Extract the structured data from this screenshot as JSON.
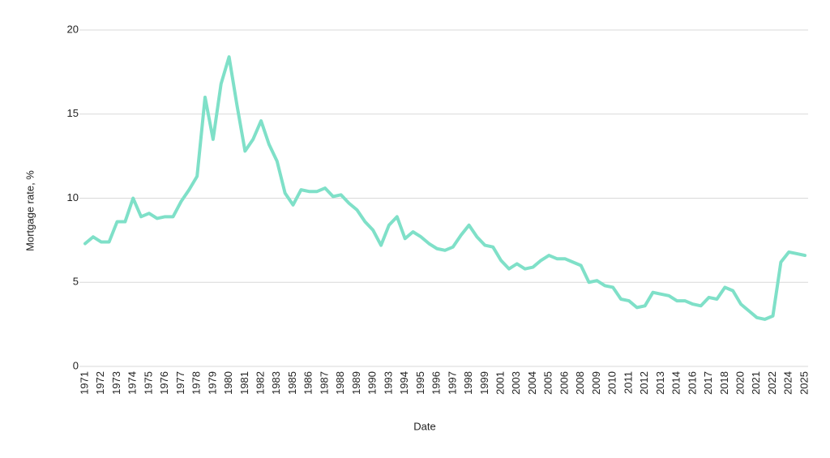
{
  "chart_data": {
    "type": "line",
    "x_label": "Date",
    "y_label": "Mortgage rate, %",
    "categories": [
      "1971",
      null,
      "1972",
      null,
      "1973",
      null,
      "1974",
      null,
      "1975",
      null,
      "1976",
      null,
      "1977",
      null,
      "1978",
      null,
      "1979",
      null,
      "1980",
      null,
      "1981",
      null,
      "1982",
      null,
      "1983",
      null,
      "1985",
      null,
      "1986",
      null,
      "1987",
      null,
      "1988",
      null,
      "1989",
      null,
      "1990",
      null,
      "1993",
      null,
      "1994",
      null,
      "1995",
      null,
      "1996",
      null,
      "1997",
      null,
      "1998",
      null,
      "1999",
      null,
      "2001",
      null,
      "2003",
      null,
      "2004",
      null,
      "2005",
      null,
      "2006",
      null,
      "2008",
      null,
      "2009",
      null,
      "2010",
      null,
      "2011",
      null,
      "2012",
      null,
      "2013",
      null,
      "2014",
      null,
      "2016",
      null,
      "2017",
      null,
      "2018",
      null,
      "2020",
      null,
      "2021",
      null,
      "2022",
      null,
      "2024",
      null,
      "2025"
    ],
    "series": [
      {
        "name": "Mortgage rate",
        "color": "#7fe0c8",
        "values": [
          7.3,
          7.7,
          7.4,
          7.4,
          8.6,
          8.6,
          10.0,
          8.9,
          9.1,
          8.8,
          8.9,
          8.9,
          9.8,
          10.5,
          11.3,
          16.0,
          13.5,
          16.8,
          18.4,
          15.5,
          12.8,
          13.5,
          14.6,
          13.2,
          12.2,
          10.3,
          9.6,
          10.5,
          10.4,
          10.4,
          10.6,
          10.1,
          10.2,
          9.7,
          9.3,
          8.6,
          8.1,
          7.2,
          8.4,
          8.9,
          7.6,
          8.0,
          7.7,
          7.3,
          7.0,
          6.9,
          7.1,
          7.8,
          8.4,
          7.7,
          7.2,
          7.1,
          6.3,
          5.8,
          6.1,
          5.8,
          5.9,
          6.3,
          6.6,
          6.4,
          6.4,
          6.2,
          6.0,
          5.0,
          5.1,
          4.8,
          4.7,
          4.0,
          3.9,
          3.5,
          3.6,
          4.4,
          4.3,
          4.2,
          3.9,
          3.9,
          3.7,
          3.6,
          4.1,
          4.0,
          4.7,
          4.5,
          3.7,
          3.3,
          2.9,
          2.8,
          3.0,
          6.2,
          6.8,
          6.7,
          6.6
        ]
      }
    ],
    "ylim": [
      0,
      20
    ],
    "yticks": [
      0,
      5,
      10,
      15,
      20
    ],
    "grid": true
  }
}
